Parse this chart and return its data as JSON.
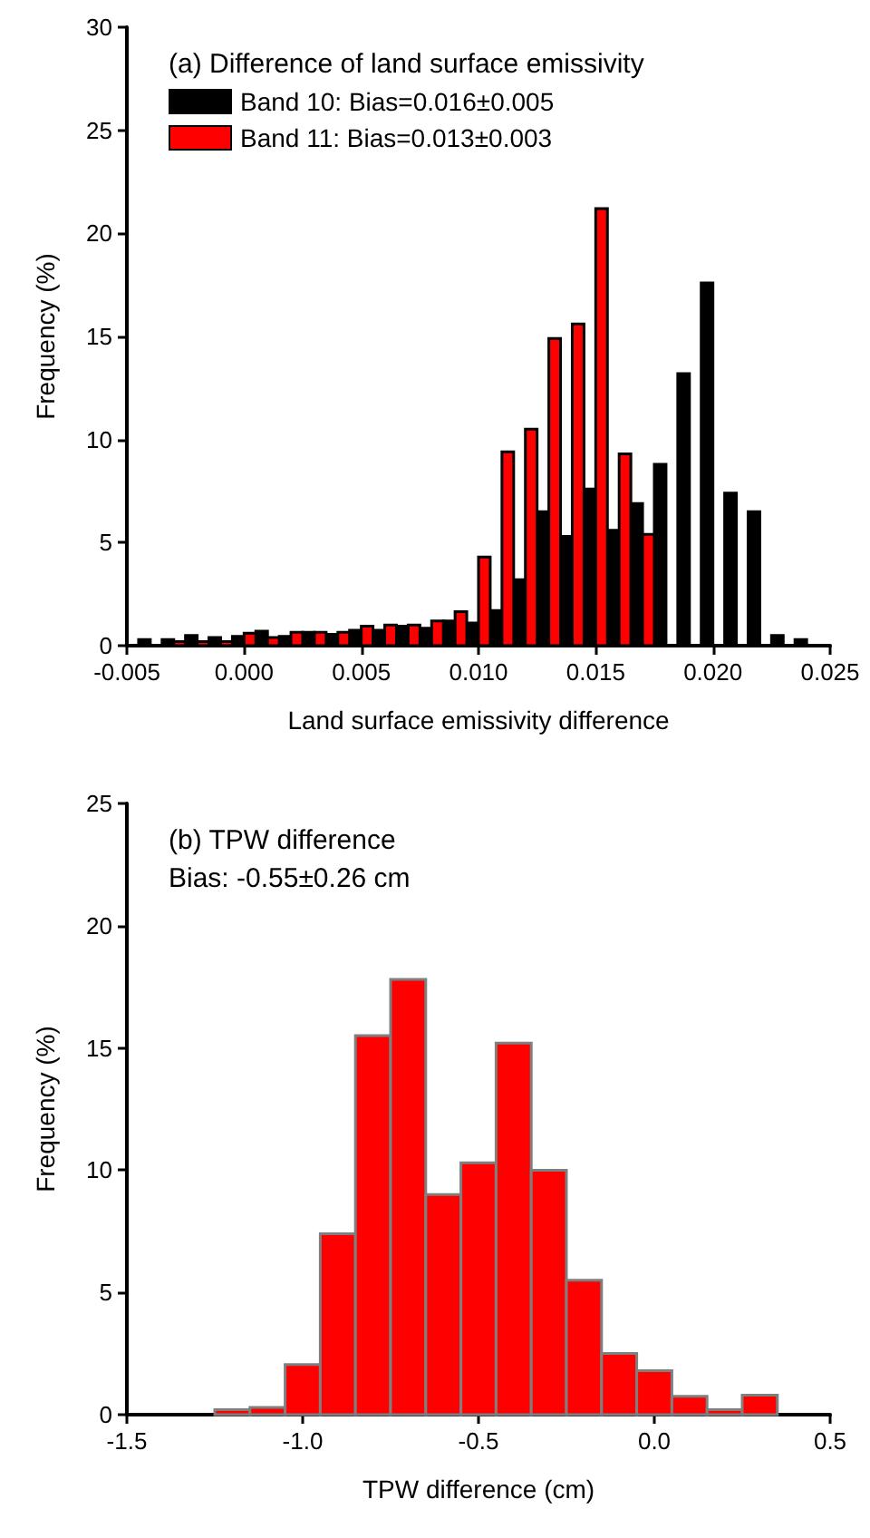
{
  "chart_data": [
    {
      "type": "histogram",
      "title": "(a) Difference of land surface emissivity",
      "xlabel": "Land surface emissivity difference",
      "ylabel": "Frequency (%)",
      "legend": "top left",
      "bins": [
        -0.0045,
        -0.0035,
        -0.0025,
        -0.0015,
        -0.0005,
        0.0005,
        0.0015,
        0.0025,
        0.0035,
        0.0045,
        0.0055,
        0.0065,
        0.0075,
        0.0085,
        0.0095,
        0.0105,
        0.0115,
        0.0125,
        0.0135,
        0.0145,
        0.0155,
        0.0165,
        0.0175,
        0.0185,
        0.0195,
        0.0205,
        0.0215,
        0.0225,
        0.0235,
        0.0245
      ],
      "series": [
        {
          "name": "Band 10: Bias=0.016±0.005",
          "color": "#000000",
          "values": [
            0.3,
            0.3,
            0.5,
            0.4,
            0.45,
            0.7,
            0.45,
            0.65,
            0.55,
            0.75,
            0.75,
            0.95,
            0.85,
            1.2,
            1.1,
            1.7,
            3.2,
            6.5,
            5.3,
            7.6,
            5.6,
            6.9,
            8.8,
            13.2,
            17.6,
            7.4,
            6.5,
            0.5,
            0.3
          ]
        },
        {
          "name": "Band 11: Bias=0.013±0.003",
          "color": "#ff0000",
          "values": [
            0,
            0.2,
            0.2,
            0.2,
            0.6,
            0.4,
            0.65,
            0.65,
            0.65,
            0.95,
            1.0,
            1.0,
            1.2,
            1.65,
            4.3,
            9.4,
            10.5,
            14.9,
            15.6,
            21.2,
            9.3,
            5.4,
            0,
            0,
            0,
            0,
            0,
            0,
            0
          ]
        }
      ],
      "xlim": [
        -0.005,
        0.025
      ],
      "xticks": [
        {
          "value": -0.005,
          "label": "-0.005"
        },
        {
          "value": 0,
          "label": "0.000"
        },
        {
          "value": 0.005,
          "label": "0.005"
        },
        {
          "value": 0.01,
          "label": "0.010"
        },
        {
          "value": 0.015,
          "label": "0.015"
        },
        {
          "value": 0.02,
          "label": "0.020"
        },
        {
          "value": 0.025,
          "label": "0.025"
        }
      ],
      "ylim": [
        0,
        30
      ],
      "yticks": [
        0,
        5,
        10,
        15,
        20,
        25,
        30
      ],
      "grid": false
    },
    {
      "type": "histogram",
      "title": "(b) TPW difference",
      "subtitle": "Bias: -0.55±0.26 cm",
      "xlabel": "TPW difference (cm)",
      "ylabel": "Frequency (%)",
      "bins": [
        -1.25,
        -1.15,
        -1.05,
        -0.95,
        -0.85,
        -0.75,
        -0.65,
        -0.55,
        -0.45,
        -0.35,
        -0.25,
        -0.15,
        -0.05,
        0.05,
        0.15,
        0.25,
        0.35
      ],
      "series": [
        {
          "color": "#ff0000",
          "values": [
            0.2,
            0.3,
            2.05,
            7.4,
            15.5,
            17.8,
            9.0,
            10.3,
            15.2,
            10.0,
            5.5,
            2.5,
            1.8,
            0.75,
            0.2,
            0.8
          ]
        }
      ],
      "xlim": [
        -1.5,
        0.5
      ],
      "xticks": [
        {
          "value": -1.5,
          "label": "-1.5"
        },
        {
          "value": -1.0,
          "label": "-1.0"
        },
        {
          "value": -0.5,
          "label": "-0.5"
        },
        {
          "value": 0,
          "label": "0.0"
        },
        {
          "value": 0.5,
          "label": "0.5"
        }
      ],
      "ylim": [
        0,
        25
      ],
      "yticks": [
        0,
        5,
        10,
        15,
        20,
        25
      ],
      "grid": false
    }
  ]
}
